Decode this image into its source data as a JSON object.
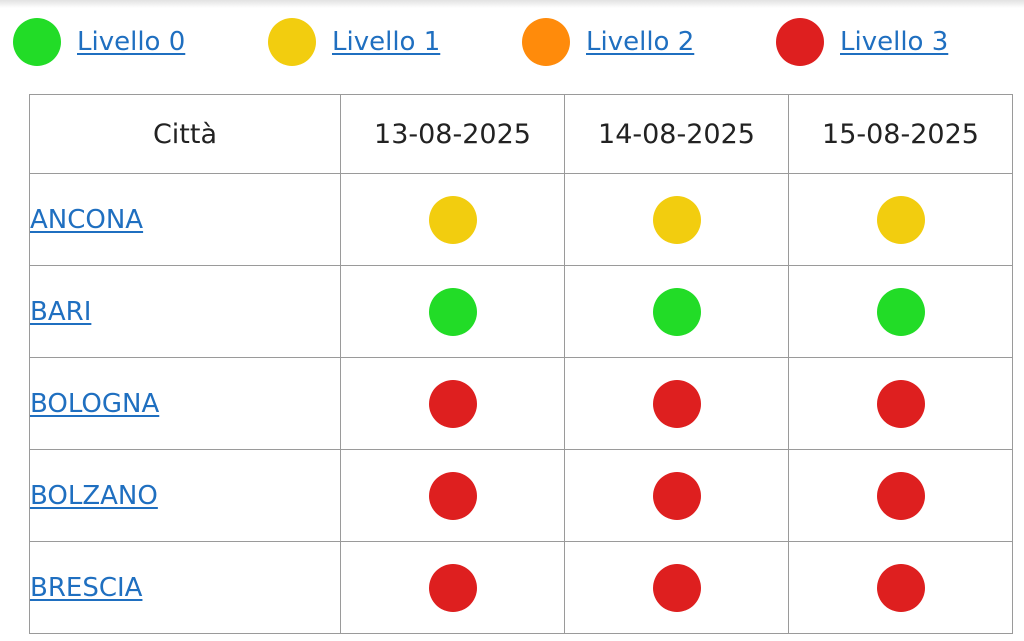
{
  "legend": [
    {
      "label": "Livello 0",
      "color": "#22dc27"
    },
    {
      "label": "Livello 1",
      "color": "#f2cd0f"
    },
    {
      "label": "Livello 2",
      "color": "#ff8b0b"
    },
    {
      "label": "Livello 3",
      "color": "#de1f1f"
    }
  ],
  "table": {
    "headers": [
      "Città",
      "13-08-2025",
      "14-08-2025",
      "15-08-2025"
    ],
    "rows": [
      {
        "city": "ANCONA",
        "levels": [
          1,
          1,
          1
        ]
      },
      {
        "city": "BARI",
        "levels": [
          0,
          0,
          0
        ]
      },
      {
        "city": "BOLOGNA",
        "levels": [
          3,
          3,
          3
        ]
      },
      {
        "city": "BOLZANO",
        "levels": [
          3,
          3,
          3
        ]
      },
      {
        "city": "BRESCIA",
        "levels": [
          3,
          3,
          3
        ]
      }
    ]
  }
}
